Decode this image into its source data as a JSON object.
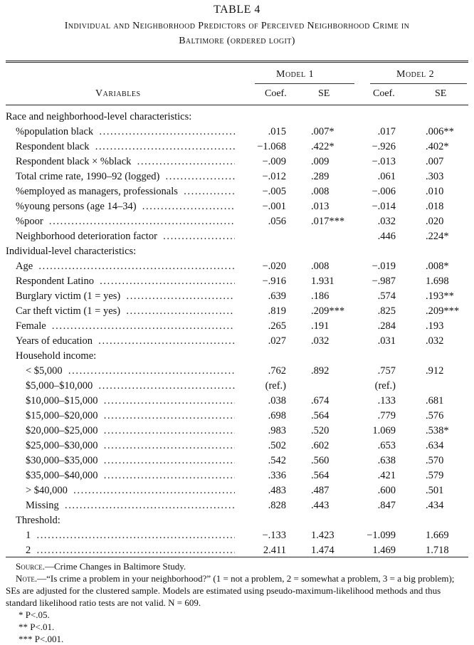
{
  "table": {
    "number": "TABLE 4",
    "title_line1": "Individual and Neighborhood Predictors of Perceived Neighborhood Crime in",
    "title_line2": "Baltimore (ordered logit)",
    "header": {
      "variables": "Variables",
      "model1": "Model 1",
      "model2": "Model 2",
      "coef": "Coef.",
      "se": "SE"
    },
    "rows": [
      {
        "label": "Race and neighborhood-level characteristics:",
        "indent": 0,
        "dots": false,
        "m1c": "",
        "m1s": "",
        "m2c": "",
        "m2s": ""
      },
      {
        "label": "%population black",
        "indent": 1,
        "dots": true,
        "m1c": ".015",
        "m1s": ".007*",
        "m2c": ".017",
        "m2s": ".006**"
      },
      {
        "label": "Respondent black",
        "indent": 1,
        "dots": true,
        "m1c": "−1.068",
        "m1s": ".422*",
        "m2c": "−.926",
        "m2s": ".402*"
      },
      {
        "label": "Respondent black × %black",
        "indent": 1,
        "dots": true,
        "m1c": "−.009",
        "m1s": ".009",
        "m2c": "−.013",
        "m2s": ".007"
      },
      {
        "label": "Total crime rate, 1990–92 (logged)",
        "indent": 1,
        "dots": true,
        "m1c": "−.012",
        "m1s": ".289",
        "m2c": ".061",
        "m2s": ".303"
      },
      {
        "label": "%employed as managers, professionals",
        "indent": 1,
        "dots": true,
        "m1c": "−.005",
        "m1s": ".008",
        "m2c": "−.006",
        "m2s": ".010"
      },
      {
        "label": "%young persons (age 14–34)",
        "indent": 1,
        "dots": true,
        "m1c": "−.001",
        "m1s": ".013",
        "m2c": "−.014",
        "m2s": ".018"
      },
      {
        "label": "%poor",
        "indent": 1,
        "dots": true,
        "m1c": ".056",
        "m1s": ".017***",
        "m2c": ".032",
        "m2s": ".020"
      },
      {
        "label": "Neighborhood deterioration factor",
        "indent": 1,
        "dots": true,
        "m1c": "",
        "m1s": "",
        "m2c": ".446",
        "m2s": ".224*"
      },
      {
        "label": "Individual-level characteristics:",
        "indent": 0,
        "dots": false,
        "m1c": "",
        "m1s": "",
        "m2c": "",
        "m2s": ""
      },
      {
        "label": "Age",
        "indent": 1,
        "dots": true,
        "m1c": "−.020",
        "m1s": ".008",
        "m2c": "−.019",
        "m2s": ".008*"
      },
      {
        "label": "Respondent Latino",
        "indent": 1,
        "dots": true,
        "m1c": "−.916",
        "m1s": "1.931",
        "m2c": "−.987",
        "m2s": "1.698"
      },
      {
        "label": "Burglary victim (1 = yes)",
        "indent": 1,
        "dots": true,
        "m1c": ".639",
        "m1s": ".186",
        "m2c": ".574",
        "m2s": ".193**"
      },
      {
        "label": "Car theft victim (1 = yes)",
        "indent": 1,
        "dots": true,
        "m1c": ".819",
        "m1s": ".209***",
        "m2c": ".825",
        "m2s": ".209***"
      },
      {
        "label": "Female",
        "indent": 1,
        "dots": true,
        "m1c": ".265",
        "m1s": ".191",
        "m2c": ".284",
        "m2s": ".193"
      },
      {
        "label": "Years of education",
        "indent": 1,
        "dots": true,
        "m1c": ".027",
        "m1s": ".032",
        "m2c": ".031",
        "m2s": ".032"
      },
      {
        "label": "Household income:",
        "indent": 1,
        "dots": false,
        "m1c": "",
        "m1s": "",
        "m2c": "",
        "m2s": ""
      },
      {
        "label": "< $5,000",
        "indent": 2,
        "dots": true,
        "m1c": ".762",
        "m1s": ".892",
        "m2c": ".757",
        "m2s": ".912"
      },
      {
        "label": "$5,000–$10,000",
        "indent": 2,
        "dots": true,
        "m1c": "(ref.)",
        "m1s": "",
        "m2c": "(ref.)",
        "m2s": ""
      },
      {
        "label": "$10,000–$15,000",
        "indent": 2,
        "dots": true,
        "m1c": ".038",
        "m1s": ".674",
        "m2c": ".133",
        "m2s": ".681"
      },
      {
        "label": "$15,000–$20,000",
        "indent": 2,
        "dots": true,
        "m1c": ".698",
        "m1s": ".564",
        "m2c": ".779",
        "m2s": ".576"
      },
      {
        "label": "$20,000–$25,000",
        "indent": 2,
        "dots": true,
        "m1c": ".983",
        "m1s": ".520",
        "m2c": "1.069",
        "m2s": ".538*"
      },
      {
        "label": "$25,000–$30,000",
        "indent": 2,
        "dots": true,
        "m1c": ".502",
        "m1s": ".602",
        "m2c": ".653",
        "m2s": ".634"
      },
      {
        "label": "$30,000–$35,000",
        "indent": 2,
        "dots": true,
        "m1c": ".542",
        "m1s": ".560",
        "m2c": ".638",
        "m2s": ".570"
      },
      {
        "label": "$35,000–$40,000",
        "indent": 2,
        "dots": true,
        "m1c": ".336",
        "m1s": ".564",
        "m2c": ".421",
        "m2s": ".579"
      },
      {
        "label": "> $40,000",
        "indent": 2,
        "dots": true,
        "m1c": ".483",
        "m1s": ".487",
        "m2c": ".600",
        "m2s": ".501"
      },
      {
        "label": "Missing",
        "indent": 2,
        "dots": true,
        "m1c": ".828",
        "m1s": ".443",
        "m2c": ".847",
        "m2s": ".434"
      },
      {
        "label": "Threshold:",
        "indent": 1,
        "dots": false,
        "m1c": "",
        "m1s": "",
        "m2c": "",
        "m2s": ""
      },
      {
        "label": "1",
        "indent": 2,
        "dots": true,
        "m1c": "−.133",
        "m1s": "1.423",
        "m2c": "−1.099",
        "m2s": "1.669"
      },
      {
        "label": "2",
        "indent": 2,
        "dots": true,
        "m1c": "2.411",
        "m1s": "1.474",
        "m2c": "1.469",
        "m2s": "1.718"
      }
    ],
    "notes": {
      "source_label": "Source.",
      "source_text": "—Crime Changes in Baltimore Study.",
      "note_label": "Note.",
      "note_text": "—“Is crime a problem in your neighborhood?” (1 = not a problem, 2 = somewhat a problem, 3 = a big problem); SEs are adjusted for the clustered sample. Models are estimated using pseudo-maximum-likelihood methods and thus standard likelihood ratio tests are not valid. N = 609.",
      "sig1": "* P<.05.",
      "sig2": "** P<.01.",
      "sig3": "*** P<.001."
    }
  }
}
